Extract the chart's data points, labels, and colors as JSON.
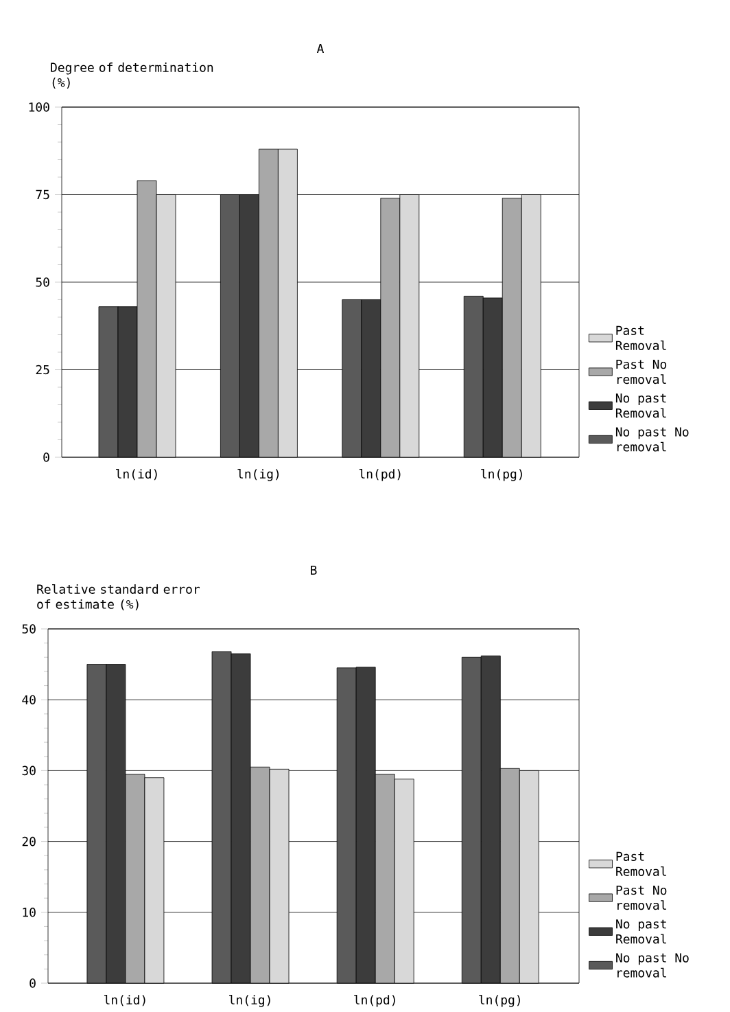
{
  "chart_data": [
    {
      "type": "bar",
      "title": "A",
      "ylabel": "Degree of determination (%)",
      "categories": [
        "ln(id)",
        "ln(ig)",
        "ln(pd)",
        "ln(pg)"
      ],
      "series": [
        {
          "name": "No past No removal",
          "color": "#5a5a5a",
          "values": [
            43,
            75,
            45,
            46
          ]
        },
        {
          "name": "No past Removal",
          "color": "#3c3c3c",
          "values": [
            43,
            75,
            45,
            45.5
          ]
        },
        {
          "name": "Past No removal",
          "color": "#a8a8a8",
          "values": [
            79,
            88,
            74,
            74
          ]
        },
        {
          "name": "Past Removal",
          "color": "#d8d8d8",
          "values": [
            75,
            88,
            75,
            75
          ]
        }
      ],
      "ylim": [
        0,
        100
      ],
      "yticks": [
        0,
        25,
        50,
        75,
        100
      ],
      "grid": "y",
      "legend": "right"
    },
    {
      "type": "bar",
      "title": "B",
      "ylabel": "Relative standard error of estimate (%)",
      "categories": [
        "ln(id)",
        "ln(ig)",
        "ln(pd)",
        "ln(pg)"
      ],
      "series": [
        {
          "name": "No past No removal",
          "color": "#5a5a5a",
          "values": [
            45,
            46.8,
            44.5,
            46
          ]
        },
        {
          "name": "No past Removal",
          "color": "#3c3c3c",
          "values": [
            45,
            46.5,
            44.6,
            46.2
          ]
        },
        {
          "name": "Past No removal",
          "color": "#a8a8a8",
          "values": [
            29.5,
            30.5,
            29.5,
            30.3
          ]
        },
        {
          "name": "Past Removal",
          "color": "#d8d8d8",
          "values": [
            29,
            30.2,
            28.8,
            30
          ]
        }
      ],
      "ylim": [
        0,
        50
      ],
      "yticks": [
        0,
        10,
        20,
        30,
        40,
        50
      ],
      "grid": "y",
      "legend": "right"
    }
  ]
}
